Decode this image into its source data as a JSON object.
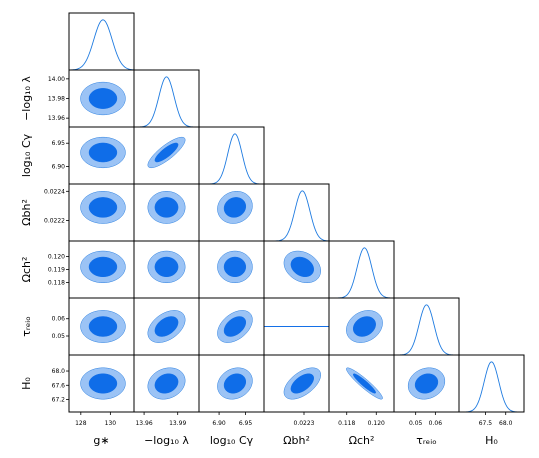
{
  "chart_data": {
    "type": "triangle-corner",
    "description_colors": {
      "outer": "#9bc3f5",
      "inner": "#0f6de8",
      "edge": "#2a7fe0",
      "line": "#1f7be0"
    },
    "parameters": [
      {
        "key": "gstar",
        "label": "g∗",
        "range": [
          127.2,
          131.6
        ],
        "mean": 129.5,
        "sigma": 0.62,
        "ticks": [
          128,
          130
        ],
        "tick_labels": [
          "128",
          "130"
        ]
      },
      {
        "key": "lambda",
        "label": "−log₁₀ λ",
        "range": [
          13.951,
          14.009
        ],
        "mean": 13.98,
        "sigma": 0.0068,
        "ticks": [
          13.96,
          13.98,
          14.0
        ],
        "tick_labels": [
          "13.96",
          "13.98",
          "14.00"
        ],
        "tick_labels_x": [
          "13.96",
          "13.99"
        ],
        "ticks_x": [
          13.96,
          13.99
        ]
      },
      {
        "key": "logCY",
        "label": "log₁₀ Cγ",
        "range": [
          6.862,
          6.985
        ],
        "mean": 6.93,
        "sigma": 0.0135,
        "ticks": [
          6.9,
          6.95
        ],
        "tick_labels": [
          "6.90",
          "6.95"
        ]
      },
      {
        "key": "obh2",
        "label": "Ωbh²",
        "range": [
          0.02206,
          0.02245
        ],
        "mean": 0.02229,
        "sigma": 4.5e-05,
        "ticks": [
          0.0222,
          0.0224
        ],
        "tick_labels": [
          "0.0222",
          "0.0224"
        ],
        "ticks_x": [
          0.0223
        ],
        "tick_labels_x": [
          "0.0223"
        ]
      },
      {
        "key": "och2",
        "label": "Ωch²",
        "range": [
          0.1168,
          0.1212
        ],
        "mean": 0.1192,
        "sigma": 0.0005,
        "ticks": [
          0.118,
          0.119,
          0.12
        ],
        "tick_labels": [
          "0.118",
          "0.119",
          "0.120"
        ],
        "ticks_x": [
          0.118,
          0.12
        ],
        "tick_labels_x": [
          "0.118",
          "0.120"
        ]
      },
      {
        "key": "tau",
        "label": "τᵣₑᵢₒ",
        "range": [
          0.039,
          0.072
        ],
        "mean": 0.0555,
        "sigma": 0.0038,
        "ticks": [
          0.05,
          0.06
        ],
        "tick_labels": [
          "0.05",
          "0.06"
        ]
      },
      {
        "key": "H0",
        "label": "H₀",
        "range": [
          66.85,
          68.45
        ],
        "mean": 67.65,
        "sigma": 0.18,
        "ticks": [
          67.2,
          67.6,
          68.0
        ],
        "tick_labels": [
          "67.2",
          "67.6",
          "68.0"
        ],
        "ticks_x": [
          67.5,
          68.0
        ],
        "tick_labels_x": [
          "67.5",
          "68.0"
        ]
      }
    ],
    "correlations": {
      "logCY|lambda": 0.82,
      "tau|lambda": 0.42,
      "tau|logCY": 0.42,
      "H0|obh2": 0.55,
      "H0|och2": -0.93,
      "H0|lambda": 0.18,
      "H0|logCY": 0.18,
      "och2|obh2": -0.25,
      "tau|och2": 0.22,
      "H0|tau": 0.15,
      "obh2|logCY": 0.1
    },
    "x_axis_labels": [
      "g∗",
      "−log₁₀ λ",
      "log₁₀ Cγ",
      "Ωbh²",
      "Ωch²",
      "τᵣₑᵢₒ",
      "H₀"
    ],
    "y_axis_labels": [
      "−log₁₀ λ",
      "log₁₀ Cγ",
      "Ωbh²",
      "Ωch²",
      "τᵣₑᵢₒ",
      "H₀"
    ]
  }
}
